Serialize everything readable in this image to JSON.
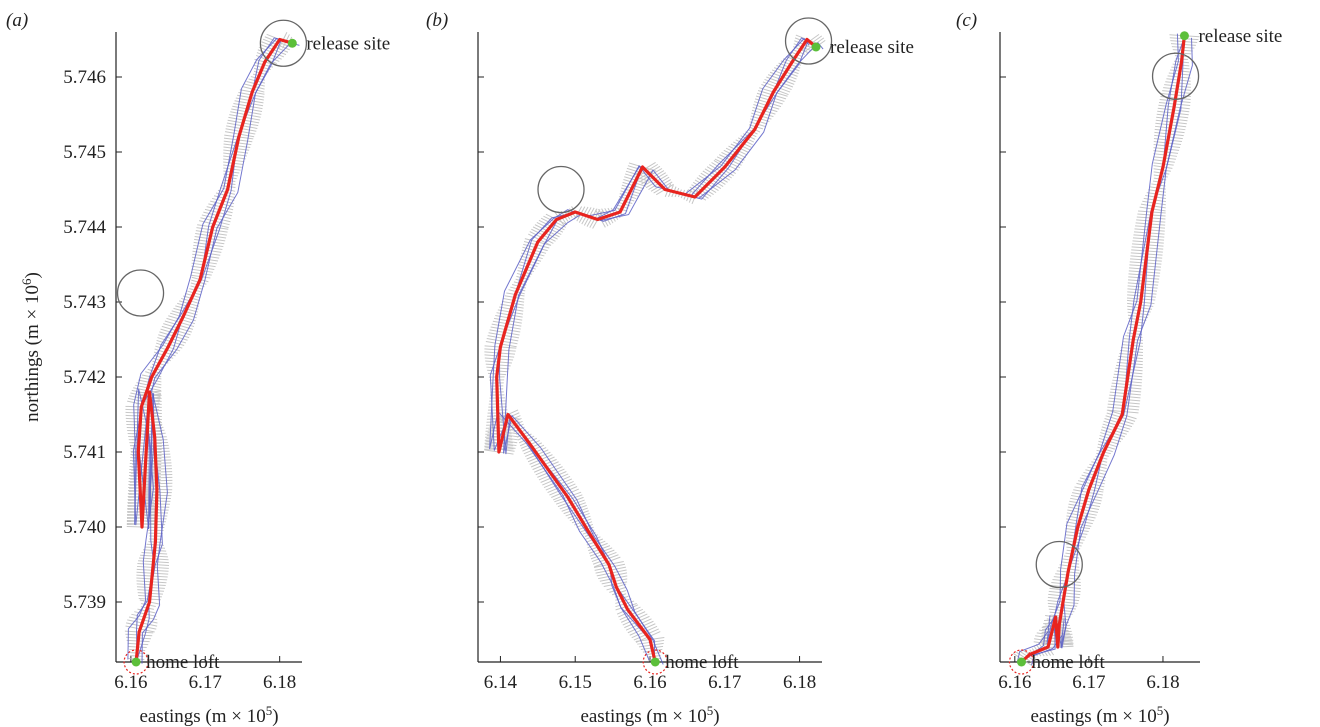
{
  "colors": {
    "mean_route": "#e8241f",
    "tracks": "#5b5fc7",
    "spread": "#bdbdbd",
    "site": "#5cbf3a",
    "loft_ring": "#e8241f",
    "circle": "#666666",
    "axis": "#222222"
  },
  "chart_data": [
    {
      "panel": "(a)",
      "type": "line",
      "xlabel": "eastings (m × 10^5)",
      "ylabel": "northings (m × 10^6)",
      "xlim": [
        6.158,
        6.183
      ],
      "ylim": [
        5.7382,
        5.7466
      ],
      "xticks": [
        "6.16",
        "6.17",
        "6.18"
      ],
      "yticks": [
        "5.739",
        "5.740",
        "5.741",
        "5.742",
        "5.743",
        "5.744",
        "5.745",
        "5.746"
      ],
      "annotations": {
        "release": "release site",
        "home": "home loft"
      },
      "release_site": [
        6.1817,
        5.74645
      ],
      "home_loft": [
        6.1607,
        5.7382
      ],
      "circles": [
        [
          6.1805,
          5.74645
        ],
        [
          6.1613,
          5.74312
        ]
      ],
      "series": [
        {
          "role": "mean",
          "x": [
            6.1817,
            6.18,
            6.178,
            6.1763,
            6.1745,
            6.173,
            6.171,
            6.1693,
            6.167,
            6.165,
            6.1628,
            6.1614,
            6.161,
            6.1615,
            6.1625,
            6.1632,
            6.1635,
            6.1633,
            6.163,
            6.1625,
            6.1618,
            6.1611,
            6.1607
          ],
          "y": [
            5.74645,
            5.7465,
            5.7462,
            5.7458,
            5.7452,
            5.7445,
            5.744,
            5.7433,
            5.7428,
            5.7424,
            5.742,
            5.7416,
            5.741,
            5.74,
            5.7418,
            5.7412,
            5.7405,
            5.7398,
            5.7395,
            5.739,
            5.7388,
            5.7386,
            5.7382
          ]
        }
      ]
    },
    {
      "panel": "(b)",
      "type": "line",
      "xlabel": "eastings (m × 10^5)",
      "xlim": [
        6.137,
        6.183
      ],
      "ylim": [
        5.7382,
        5.7466
      ],
      "xticks": [
        "6.14",
        "6.15",
        "6.16",
        "6.17",
        "6.18"
      ],
      "yticks": [],
      "annotations": {
        "release": "release site",
        "home": "home loft"
      },
      "release_site": [
        6.1822,
        5.7464
      ],
      "home_loft": [
        6.1607,
        5.7382
      ],
      "circles": [
        [
          6.1812,
          5.74648
        ],
        [
          6.1481,
          5.7445
        ]
      ],
      "series": [
        {
          "role": "mean",
          "x": [
            6.1822,
            6.181,
            6.179,
            6.1765,
            6.174,
            6.17,
            6.166,
            6.162,
            6.159,
            6.156,
            6.153,
            6.15,
            6.1475,
            6.145,
            6.142,
            6.14,
            6.1395,
            6.1398,
            6.141,
            6.144,
            6.149,
            6.152,
            6.1545,
            6.1555,
            6.157,
            6.16,
            6.1607
          ],
          "y": [
            5.7464,
            5.7465,
            5.7462,
            5.7458,
            5.7453,
            5.7448,
            5.7444,
            5.7445,
            5.7448,
            5.7442,
            5.7441,
            5.7442,
            5.7441,
            5.7438,
            5.7431,
            5.7424,
            5.742,
            5.741,
            5.7415,
            5.7411,
            5.7404,
            5.7399,
            5.7395,
            5.7392,
            5.7389,
            5.7385,
            5.7382
          ]
        }
      ]
    },
    {
      "panel": "(c)",
      "type": "line",
      "xlabel": "eastings (m × 10^5)",
      "xlim": [
        6.158,
        6.185
      ],
      "ylim": [
        5.7382,
        5.7466
      ],
      "xticks": [
        "6.16",
        "6.17",
        "6.18"
      ],
      "yticks": [],
      "annotations": {
        "release": "release site",
        "home": "home loft"
      },
      "release_site": [
        6.1829,
        5.74655
      ],
      "home_loft": [
        6.1609,
        5.7382
      ],
      "circles": [
        [
          6.1817,
          5.74601
        ],
        [
          6.166,
          5.7395
        ]
      ],
      "series": [
        {
          "role": "mean",
          "x": [
            6.1829,
            6.1825,
            6.1815,
            6.18,
            6.1785,
            6.177,
            6.176,
            6.1745,
            6.172,
            6.17,
            6.1685,
            6.1672,
            6.1665,
            6.166,
            6.1658,
            6.1655,
            6.165,
            6.1645,
            6.162,
            6.1609
          ],
          "y": [
            5.74655,
            5.7462,
            5.7456,
            5.7448,
            5.7442,
            5.743,
            5.7425,
            5.7415,
            5.741,
            5.7405,
            5.74,
            5.7394,
            5.739,
            5.7387,
            5.7384,
            5.7388,
            5.7386,
            5.7384,
            5.7383,
            5.7382
          ]
        }
      ]
    }
  ]
}
